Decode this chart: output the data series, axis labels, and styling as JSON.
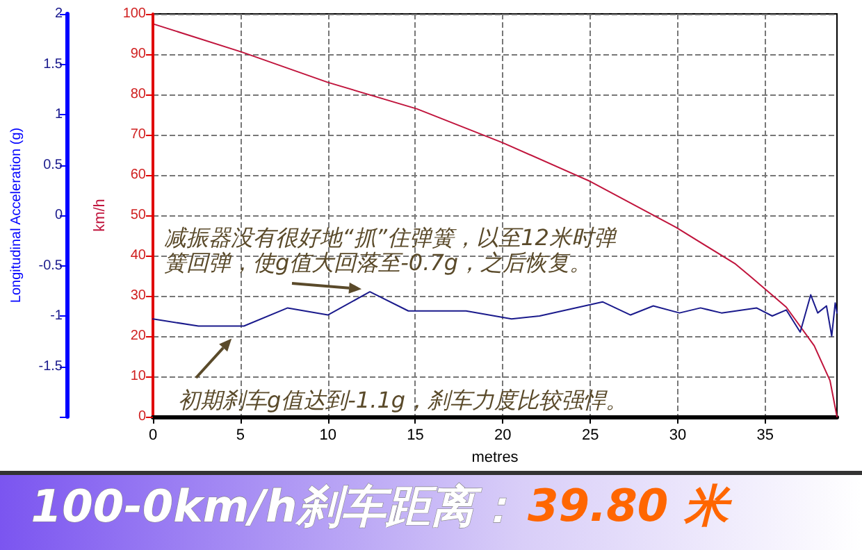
{
  "chart_data": {
    "type": "line",
    "xlabel": "metres",
    "ylabel": "Longitudinal Acceleration (g)",
    "y2label": "km/h",
    "xlim": [
      0,
      39.1
    ],
    "xticks": [
      0,
      5,
      10,
      15,
      20,
      25,
      30,
      35
    ],
    "ylim": [
      -2,
      2
    ],
    "yticks": [
      {
        "value": -2,
        "label": null
      },
      -1.5,
      -1,
      -0.5,
      0,
      0.5,
      1,
      1.5,
      2
    ],
    "y2lim": [
      0,
      100
    ],
    "y2ticks": [
      0,
      10,
      20,
      30,
      40,
      50,
      60,
      70,
      80,
      90,
      100
    ],
    "grid": true,
    "marker": "none",
    "line_style": "solid",
    "series": [
      {
        "color": "#c0143c",
        "axis": "y2",
        "x": [
          0.1,
          5.1,
          10,
          15.1,
          20,
          25,
          29.9,
          33.3,
          34.1,
          36.2,
          37.8,
          38.7,
          39.1
        ],
        "values": [
          97.4,
          90.5,
          83,
          76.4,
          68,
          58.4,
          47,
          37.9,
          35,
          27.2,
          17.6,
          9,
          0
        ]
      },
      {
        "color": "#1a1a8c",
        "x": [
          0,
          2.6,
          5.2,
          7.7,
          10,
          12.4,
          14.6,
          17.9,
          20.5,
          22.1,
          25.7,
          27.3,
          28.6,
          30.1,
          31.3,
          32.5,
          34.5,
          35.4,
          36.2,
          37,
          37.6,
          38,
          38.5,
          38.8,
          39,
          39.1
        ],
        "values": [
          -1.03,
          -1.1,
          -1.1,
          -0.92,
          -0.99,
          -0.76,
          -0.95,
          -0.95,
          -1.03,
          -1,
          -0.86,
          -0.99,
          -0.9,
          -0.97,
          -0.92,
          -0.97,
          -0.92,
          -1,
          -0.94,
          -1.16,
          -0.79,
          -0.97,
          -0.9,
          -1.2,
          -0.87,
          -0.97
        ]
      }
    ],
    "annotations": [
      {
        "text": "减振器没有很好地“抓”住弹簧，以至12米时弹簧回弹，使g值大回落至-0.7g，之后恢复。",
        "x": 12.4,
        "y": -0.76
      },
      {
        "text": "初期刹车g值达到-1.1g，刹车力度比较强悍。",
        "x": 4.5,
        "y": -1.1
      },
      "100-0km/h刹车距离：",
      "39.80 米"
    ]
  }
}
